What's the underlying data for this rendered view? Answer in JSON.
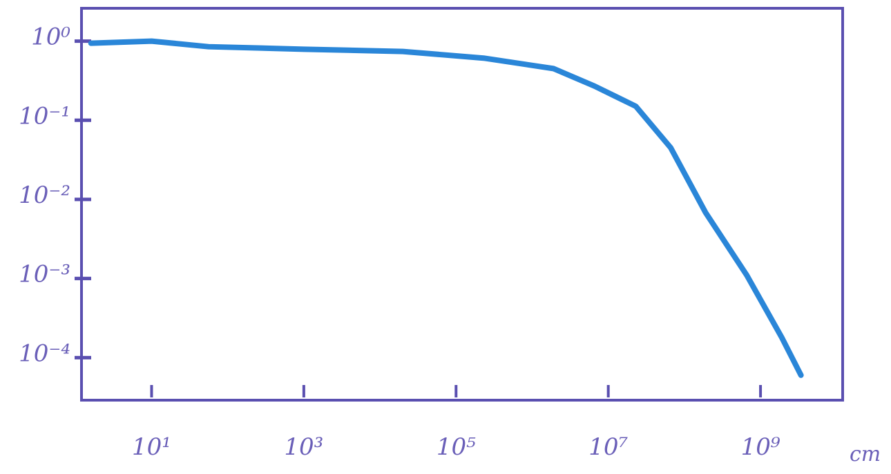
{
  "chart_data": {
    "type": "line",
    "x_label": "cm",
    "x": [
      1.6,
      10,
      56,
      1000,
      20000,
      230000,
      1900000,
      6600000,
      23000000,
      66000000,
      190000000,
      660000000,
      1900000000,
      3400000000
    ],
    "series": [
      {
        "color": "#2a86d8",
        "values": [
          0.94,
          1.0,
          0.85,
          0.79,
          0.74,
          0.61,
          0.45,
          0.27,
          0.15,
          0.045,
          0.0068,
          0.0011,
          0.00018,
          6e-05
        ]
      }
    ],
    "xscale": "log",
    "yscale": "log",
    "xlim": [
      1.2,
      12000000000
    ],
    "ylim": [
      2.9e-05,
      2.6
    ],
    "xticks": [
      {
        "value": 10,
        "label": "10¹"
      },
      {
        "value": 1000,
        "label": "10³"
      },
      {
        "value": 100000,
        "label": "10⁵"
      },
      {
        "value": 10000000,
        "label": "10⁷"
      },
      {
        "value": 1000000000,
        "label": "10⁹"
      }
    ],
    "yticks": [
      {
        "value": 1,
        "label": "10⁰"
      },
      {
        "value": 0.1,
        "label": "10⁻¹"
      },
      {
        "value": 0.01,
        "label": "10⁻²"
      },
      {
        "value": 0.001,
        "label": "10⁻³"
      },
      {
        "value": 0.0001,
        "label": "10⁻⁴"
      }
    ],
    "axis_color": "#5a4fb0",
    "grid": false
  }
}
